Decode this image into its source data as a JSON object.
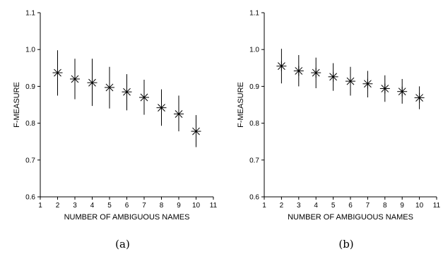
{
  "chart_data": [
    {
      "type": "scatter",
      "subtitle": "(a)",
      "xlabel": "NUMBER OF AMBIGUOUS NAMES",
      "ylabel": "F-MEASURE",
      "xlim": [
        1,
        11
      ],
      "ylim": [
        0.6,
        1.1
      ],
      "xticks": [
        1,
        2,
        3,
        4,
        5,
        6,
        7,
        8,
        9,
        10,
        11
      ],
      "yticks": [
        0.6,
        0.7,
        0.8,
        0.9,
        1.0,
        1.1
      ],
      "yticklabels": [
        "0.6",
        "0.7",
        "0.8",
        "0.9",
        "1.0",
        "1.1"
      ],
      "grid": false,
      "marker": "asterisk-with-error-bars",
      "points": [
        {
          "x": 2,
          "y": 0.937,
          "low": 0.875,
          "high": 0.998
        },
        {
          "x": 3,
          "y": 0.92,
          "low": 0.865,
          "high": 0.975
        },
        {
          "x": 4,
          "y": 0.91,
          "low": 0.847,
          "high": 0.975
        },
        {
          "x": 5,
          "y": 0.897,
          "low": 0.84,
          "high": 0.953
        },
        {
          "x": 6,
          "y": 0.885,
          "low": 0.835,
          "high": 0.933
        },
        {
          "x": 7,
          "y": 0.87,
          "low": 0.823,
          "high": 0.918
        },
        {
          "x": 8,
          "y": 0.842,
          "low": 0.793,
          "high": 0.892
        },
        {
          "x": 9,
          "y": 0.825,
          "low": 0.778,
          "high": 0.875
        },
        {
          "x": 10,
          "y": 0.778,
          "low": 0.735,
          "high": 0.822
        }
      ]
    },
    {
      "type": "scatter",
      "subtitle": "(b)",
      "xlabel": "NUMBER OF AMBIGUOUS NAMES",
      "ylabel": "F-MEASURE",
      "xlim": [
        1,
        11
      ],
      "ylim": [
        0.6,
        1.1
      ],
      "xticks": [
        1,
        2,
        3,
        4,
        5,
        6,
        7,
        8,
        9,
        10,
        11
      ],
      "yticks": [
        0.6,
        0.7,
        0.8,
        0.9,
        1.0,
        1.1
      ],
      "yticklabels": [
        "0.6",
        "0.7",
        "0.8",
        "0.9",
        "1.0",
        "1.1"
      ],
      "grid": false,
      "marker": "asterisk-with-error-bars",
      "points": [
        {
          "x": 2,
          "y": 0.955,
          "low": 0.908,
          "high": 1.002
        },
        {
          "x": 3,
          "y": 0.942,
          "low": 0.9,
          "high": 0.985
        },
        {
          "x": 4,
          "y": 0.937,
          "low": 0.895,
          "high": 0.978
        },
        {
          "x": 5,
          "y": 0.926,
          "low": 0.888,
          "high": 0.963
        },
        {
          "x": 6,
          "y": 0.914,
          "low": 0.875,
          "high": 0.953
        },
        {
          "x": 7,
          "y": 0.907,
          "low": 0.87,
          "high": 0.942
        },
        {
          "x": 8,
          "y": 0.894,
          "low": 0.858,
          "high": 0.93
        },
        {
          "x": 9,
          "y": 0.886,
          "low": 0.853,
          "high": 0.92
        },
        {
          "x": 10,
          "y": 0.869,
          "low": 0.838,
          "high": 0.9
        }
      ]
    }
  ]
}
